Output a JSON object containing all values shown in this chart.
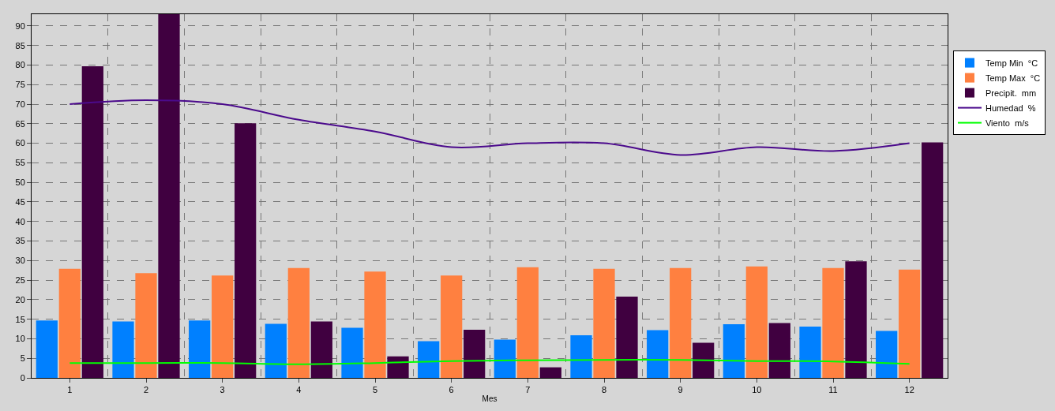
{
  "chart_data": {
    "type": "bar",
    "xlabel": "Mes",
    "categories": [
      "1",
      "2",
      "3",
      "4",
      "5",
      "6",
      "7",
      "8",
      "9",
      "10",
      "11",
      "12"
    ],
    "series": [
      {
        "name": "Temp Min  °C",
        "color": "#0080ff",
        "values": [
          14.7,
          14.4,
          14.7,
          13.8,
          12.8,
          9.4,
          9.8,
          10.9,
          12.2,
          13.7,
          13.1,
          12.0
        ]
      },
      {
        "name": "Temp Max  °C",
        "color": "#ff8040",
        "values": [
          27.9,
          26.8,
          26.2,
          28.1,
          27.2,
          26.2,
          28.3,
          27.9,
          28.1,
          28.5,
          28.1,
          27.7
        ]
      },
      {
        "name": "Precipit.  mm",
        "color": "#400040",
        "values": [
          79.7,
          93,
          65.1,
          14.4,
          5.5,
          12.3,
          2.7,
          20.8,
          9.0,
          14.0,
          29.8,
          60.2
        ]
      },
      {
        "name": "Humedad  %",
        "type": "line",
        "color": "#4b0a8c",
        "values": [
          70,
          71,
          70,
          66,
          63,
          59,
          60,
          60,
          57,
          59,
          58,
          60
        ]
      },
      {
        "name": "Viento  m/s",
        "type": "line",
        "color": "#00ff00",
        "values": [
          3.8,
          3.8,
          3.8,
          3.5,
          3.8,
          4.3,
          4.5,
          4.6,
          4.6,
          4.3,
          4.2,
          3.6
        ]
      }
    ],
    "ylim": [
      0,
      93
    ],
    "yticks": [
      0,
      5,
      10,
      15,
      20,
      25,
      30,
      35,
      40,
      45,
      50,
      55,
      60,
      65,
      70,
      75,
      80,
      85,
      90
    ],
    "grid": true,
    "legend": "top right",
    "line_style": "solid",
    "marker": "none"
  }
}
